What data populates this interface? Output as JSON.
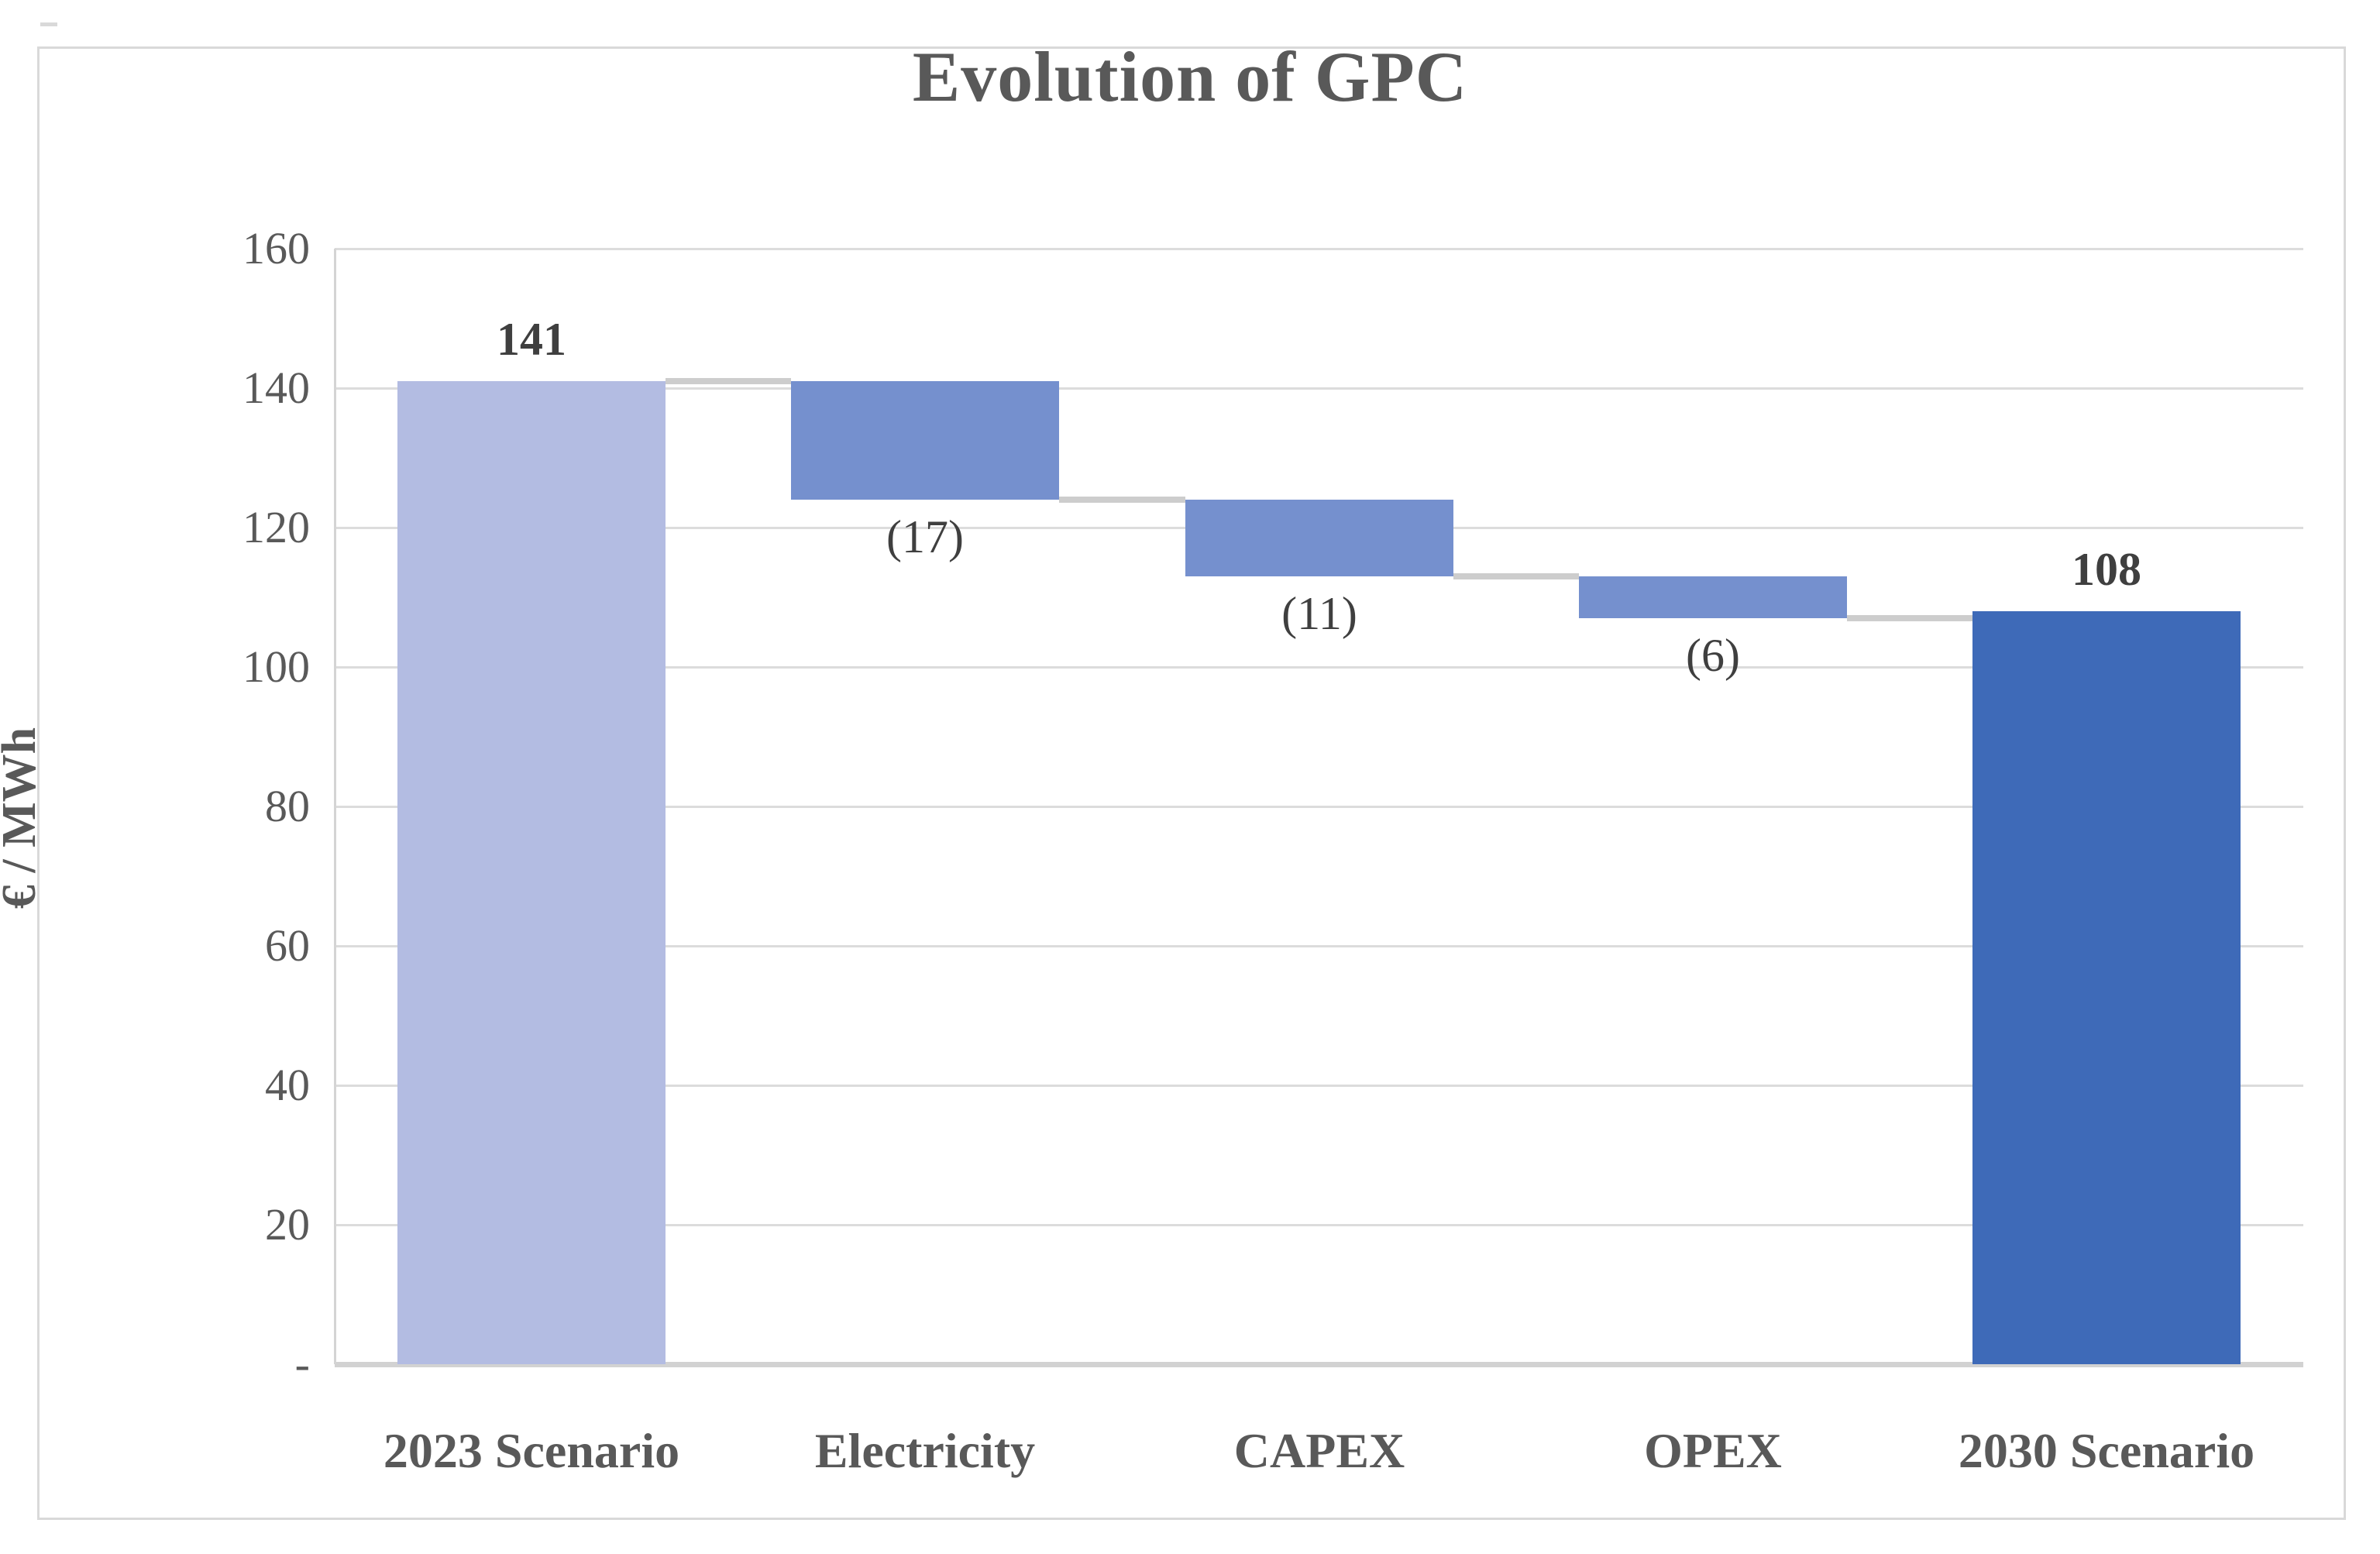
{
  "title": "Evolution of GPC",
  "y_axis": {
    "label": "€ / MWh",
    "ticks": [
      {
        "v": 160,
        "label": "160"
      },
      {
        "v": 140,
        "label": "140"
      },
      {
        "v": 120,
        "label": "120"
      },
      {
        "v": 100,
        "label": "100"
      },
      {
        "v": 80,
        "label": "80"
      },
      {
        "v": 60,
        "label": "60"
      },
      {
        "v": 40,
        "label": "40"
      },
      {
        "v": 20,
        "label": "20"
      },
      {
        "v": 0,
        "label": "-"
      }
    ]
  },
  "chart_data": {
    "type": "bar",
    "subtype": "waterfall",
    "title": "Evolution of GPC",
    "xlabel": "",
    "ylabel": "€ / MWh",
    "ylim": [
      0,
      160
    ],
    "grid": true,
    "legend": false,
    "categories": [
      "2023 Scenario",
      "Electricity",
      "CAPEX",
      "OPEX",
      "2030 Scenario"
    ],
    "steps": [
      {
        "category": "2023 Scenario",
        "start": 0,
        "end": 141,
        "delta": 141,
        "value_label": "141",
        "role": "total",
        "color": "#b3bce2"
      },
      {
        "category": "Electricity",
        "start": 141,
        "end": 124,
        "delta": -17,
        "value_label": "(17)",
        "role": "decrease",
        "color": "#7590ce"
      },
      {
        "category": "CAPEX",
        "start": 124,
        "end": 113,
        "delta": -11,
        "value_label": "(11)",
        "role": "decrease",
        "color": "#7590ce"
      },
      {
        "category": "OPEX",
        "start": 113,
        "end": 107,
        "delta": -6,
        "value_label": "(6)",
        "role": "decrease",
        "color": "#7590ce"
      },
      {
        "category": "2030 Scenario",
        "start": 0,
        "end": 108,
        "delta": 108,
        "value_label": "108",
        "role": "total",
        "color": "#3e6ab8"
      }
    ]
  },
  "colors": {
    "start_bar": "#b3bce2",
    "delta_bar": "#7590ce",
    "end_bar": "#3e6ab8",
    "gridline": "#dcdcdc",
    "connector": "#cdcdcd",
    "text": "#595959",
    "value_text": "#3f3f3f",
    "frame_border": "#d9d9d9"
  }
}
